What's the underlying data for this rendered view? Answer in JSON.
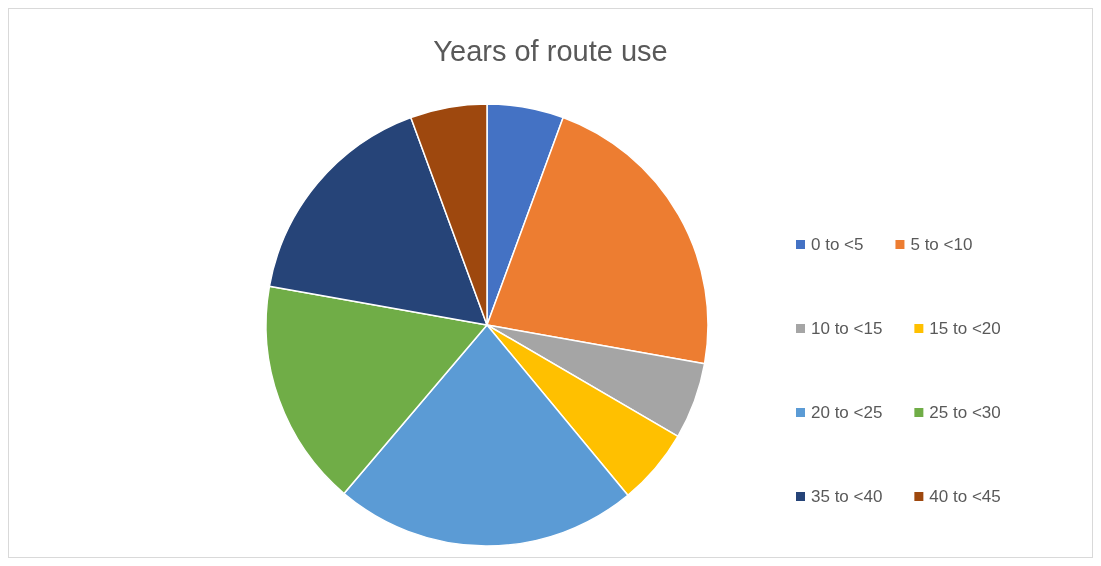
{
  "chart_data": {
    "type": "pie",
    "title": "Years of route use",
    "categories": [
      "0 to <5",
      "5 to <10",
      "10 to <15",
      "15 to <20",
      "20 to <25",
      "25 to <30",
      "35 to <40",
      "40 to <45"
    ],
    "values": [
      5.6,
      22.2,
      5.6,
      5.6,
      22.2,
      16.6,
      16.6,
      5.6
    ],
    "colors": [
      "#4472c4",
      "#ed7d31",
      "#a5a5a5",
      "#ffc000",
      "#5b9bd5",
      "#70ad47",
      "#264478",
      "#9e480e"
    ],
    "legend": "right"
  }
}
